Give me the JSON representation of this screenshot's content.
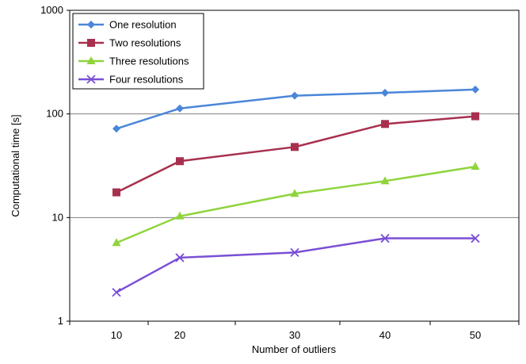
{
  "chart_data": {
    "type": "line",
    "title": "",
    "xlabel": "Number of outliers",
    "ylabel": "Computational time [s]",
    "y_scale": "log",
    "ylim": [
      1,
      1000
    ],
    "x": [
      10,
      20,
      30,
      40,
      50
    ],
    "x_ticks": [
      "10",
      "20",
      "30",
      "40",
      "50"
    ],
    "y_ticks": [
      "1",
      "10",
      "100",
      "1000"
    ],
    "grid": "horizontal major gridlines",
    "legend_position": "top-left",
    "series": [
      {
        "name": "One resolution",
        "values": [
          72,
          113,
          150,
          160,
          172
        ],
        "color": "#4a86d9",
        "marker": "diamond"
      },
      {
        "name": "Two resolutions",
        "values": [
          17.5,
          35,
          48,
          80,
          95
        ],
        "color": "#a8304e",
        "marker": "square"
      },
      {
        "name": "Three resolutions",
        "values": [
          5.7,
          10.3,
          17,
          22.5,
          31
        ],
        "color": "#8fd43c",
        "marker": "triangle"
      },
      {
        "name": "Four resolutions",
        "values": [
          1.9,
          4.1,
          4.6,
          6.3,
          6.3
        ],
        "color": "#7a4fd6",
        "marker": "x"
      }
    ]
  }
}
